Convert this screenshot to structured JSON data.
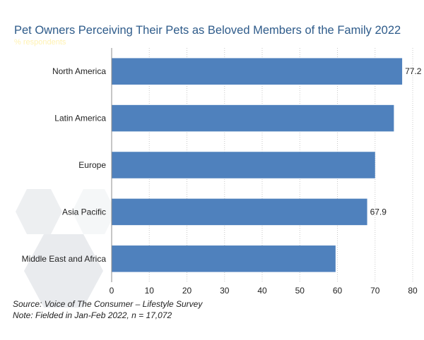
{
  "chart_data": {
    "type": "bar",
    "orientation": "horizontal",
    "title": "Pet Owners Perceiving Their Pets as Beloved Members of the Family 2022",
    "subtitle": "% respondents",
    "categories": [
      "North America",
      "Latin America",
      "Europe",
      "Asia Pacific",
      "Middle East and Africa"
    ],
    "values": [
      77.2,
      75.0,
      70.0,
      67.9,
      59.5
    ],
    "data_labels": [
      "77.2",
      "",
      "",
      "67.9",
      ""
    ],
    "xlim": [
      0,
      80
    ],
    "xticks": [
      0,
      10,
      20,
      30,
      40,
      50,
      60,
      70,
      80
    ],
    "grid": "vertical, dotted",
    "bar_color": "#4f81bd"
  },
  "footer": {
    "source": "Source: Voice of The Consumer – Lifestyle Survey",
    "note": "Note: Fielded in Jan-Feb 2022, n = 17,072"
  }
}
